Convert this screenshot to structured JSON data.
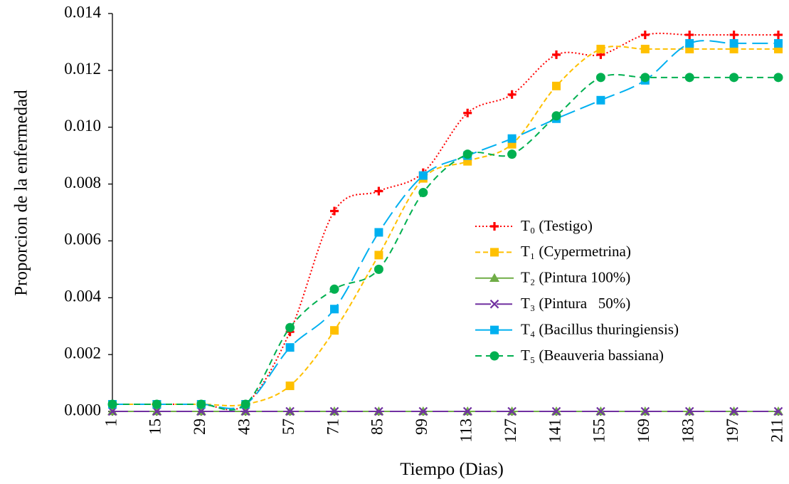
{
  "chart_data": {
    "type": "line",
    "title": "",
    "xlabel": "Tiempo (Dias)",
    "ylabel": "Proporcion de la enfermedad",
    "categories": [
      "1",
      "15",
      "29",
      "43",
      "57",
      "71",
      "85",
      "99",
      "113",
      "127",
      "141",
      "155",
      "169",
      "183",
      "197",
      "211"
    ],
    "ylim": [
      0,
      0.014
    ],
    "yticks": [
      "0.000",
      "0.002",
      "0.004",
      "0.006",
      "0.008",
      "0.010",
      "0.012",
      "0.014"
    ],
    "grid": false,
    "legend_position": "right",
    "series": [
      {
        "name": "T₀ (Testigo)",
        "color": "#ff0000",
        "marker": "plus",
        "dash": "dotted",
        "values": [
          0.00025,
          0.00025,
          0.00025,
          0.00025,
          0.0028,
          0.00705,
          0.00775,
          0.0084,
          0.0105,
          0.01115,
          0.01255,
          0.01255,
          0.01325,
          0.01325,
          0.01325,
          0.01325
        ]
      },
      {
        "name": "T₁ (Cypermetrina)",
        "color": "#ffc000",
        "marker": "square",
        "dash": "short-dash",
        "values": [
          0.00025,
          0.00025,
          0.00025,
          0.00025,
          0.0009,
          0.00285,
          0.0055,
          0.0082,
          0.0088,
          0.0094,
          0.01145,
          0.01275,
          0.01275,
          0.01275,
          0.01275,
          0.01275
        ]
      },
      {
        "name": "T₂ (Pintura 100%)",
        "color": "#70ad47",
        "marker": "triangle",
        "dash": "solid",
        "values": [
          0,
          0,
          0,
          0,
          0,
          0,
          0,
          0,
          0,
          0,
          0,
          0,
          0,
          0,
          0,
          0
        ]
      },
      {
        "name": "T₃ (Pintura   50%)",
        "color": "#7030a0",
        "marker": "x",
        "dash": "long-dash",
        "values": [
          0,
          0,
          0,
          0,
          0,
          0,
          0,
          0,
          0,
          0,
          0,
          0,
          0,
          0,
          0,
          0
        ]
      },
      {
        "name": "T₄ (Bacillus thuringiensis)",
        "color": "#00b0f0",
        "marker": "square",
        "dash": "long-dash",
        "values": [
          0.00025,
          0.00025,
          0.00025,
          0.00025,
          0.00225,
          0.0036,
          0.0063,
          0.0083,
          0.009,
          0.0096,
          0.0103,
          0.01095,
          0.01165,
          0.01295,
          0.01295,
          0.01295
        ]
      },
      {
        "name": "T₅ (Beauveria bassiana)",
        "color": "#00b050",
        "marker": "circle",
        "dash": "medium-dash",
        "values": [
          0.00025,
          0.00025,
          0.00025,
          0.00025,
          0.00295,
          0.0043,
          0.005,
          0.0077,
          0.00905,
          0.00905,
          0.0104,
          0.01175,
          0.01175,
          0.01175,
          0.01175,
          0.01175
        ]
      }
    ]
  }
}
